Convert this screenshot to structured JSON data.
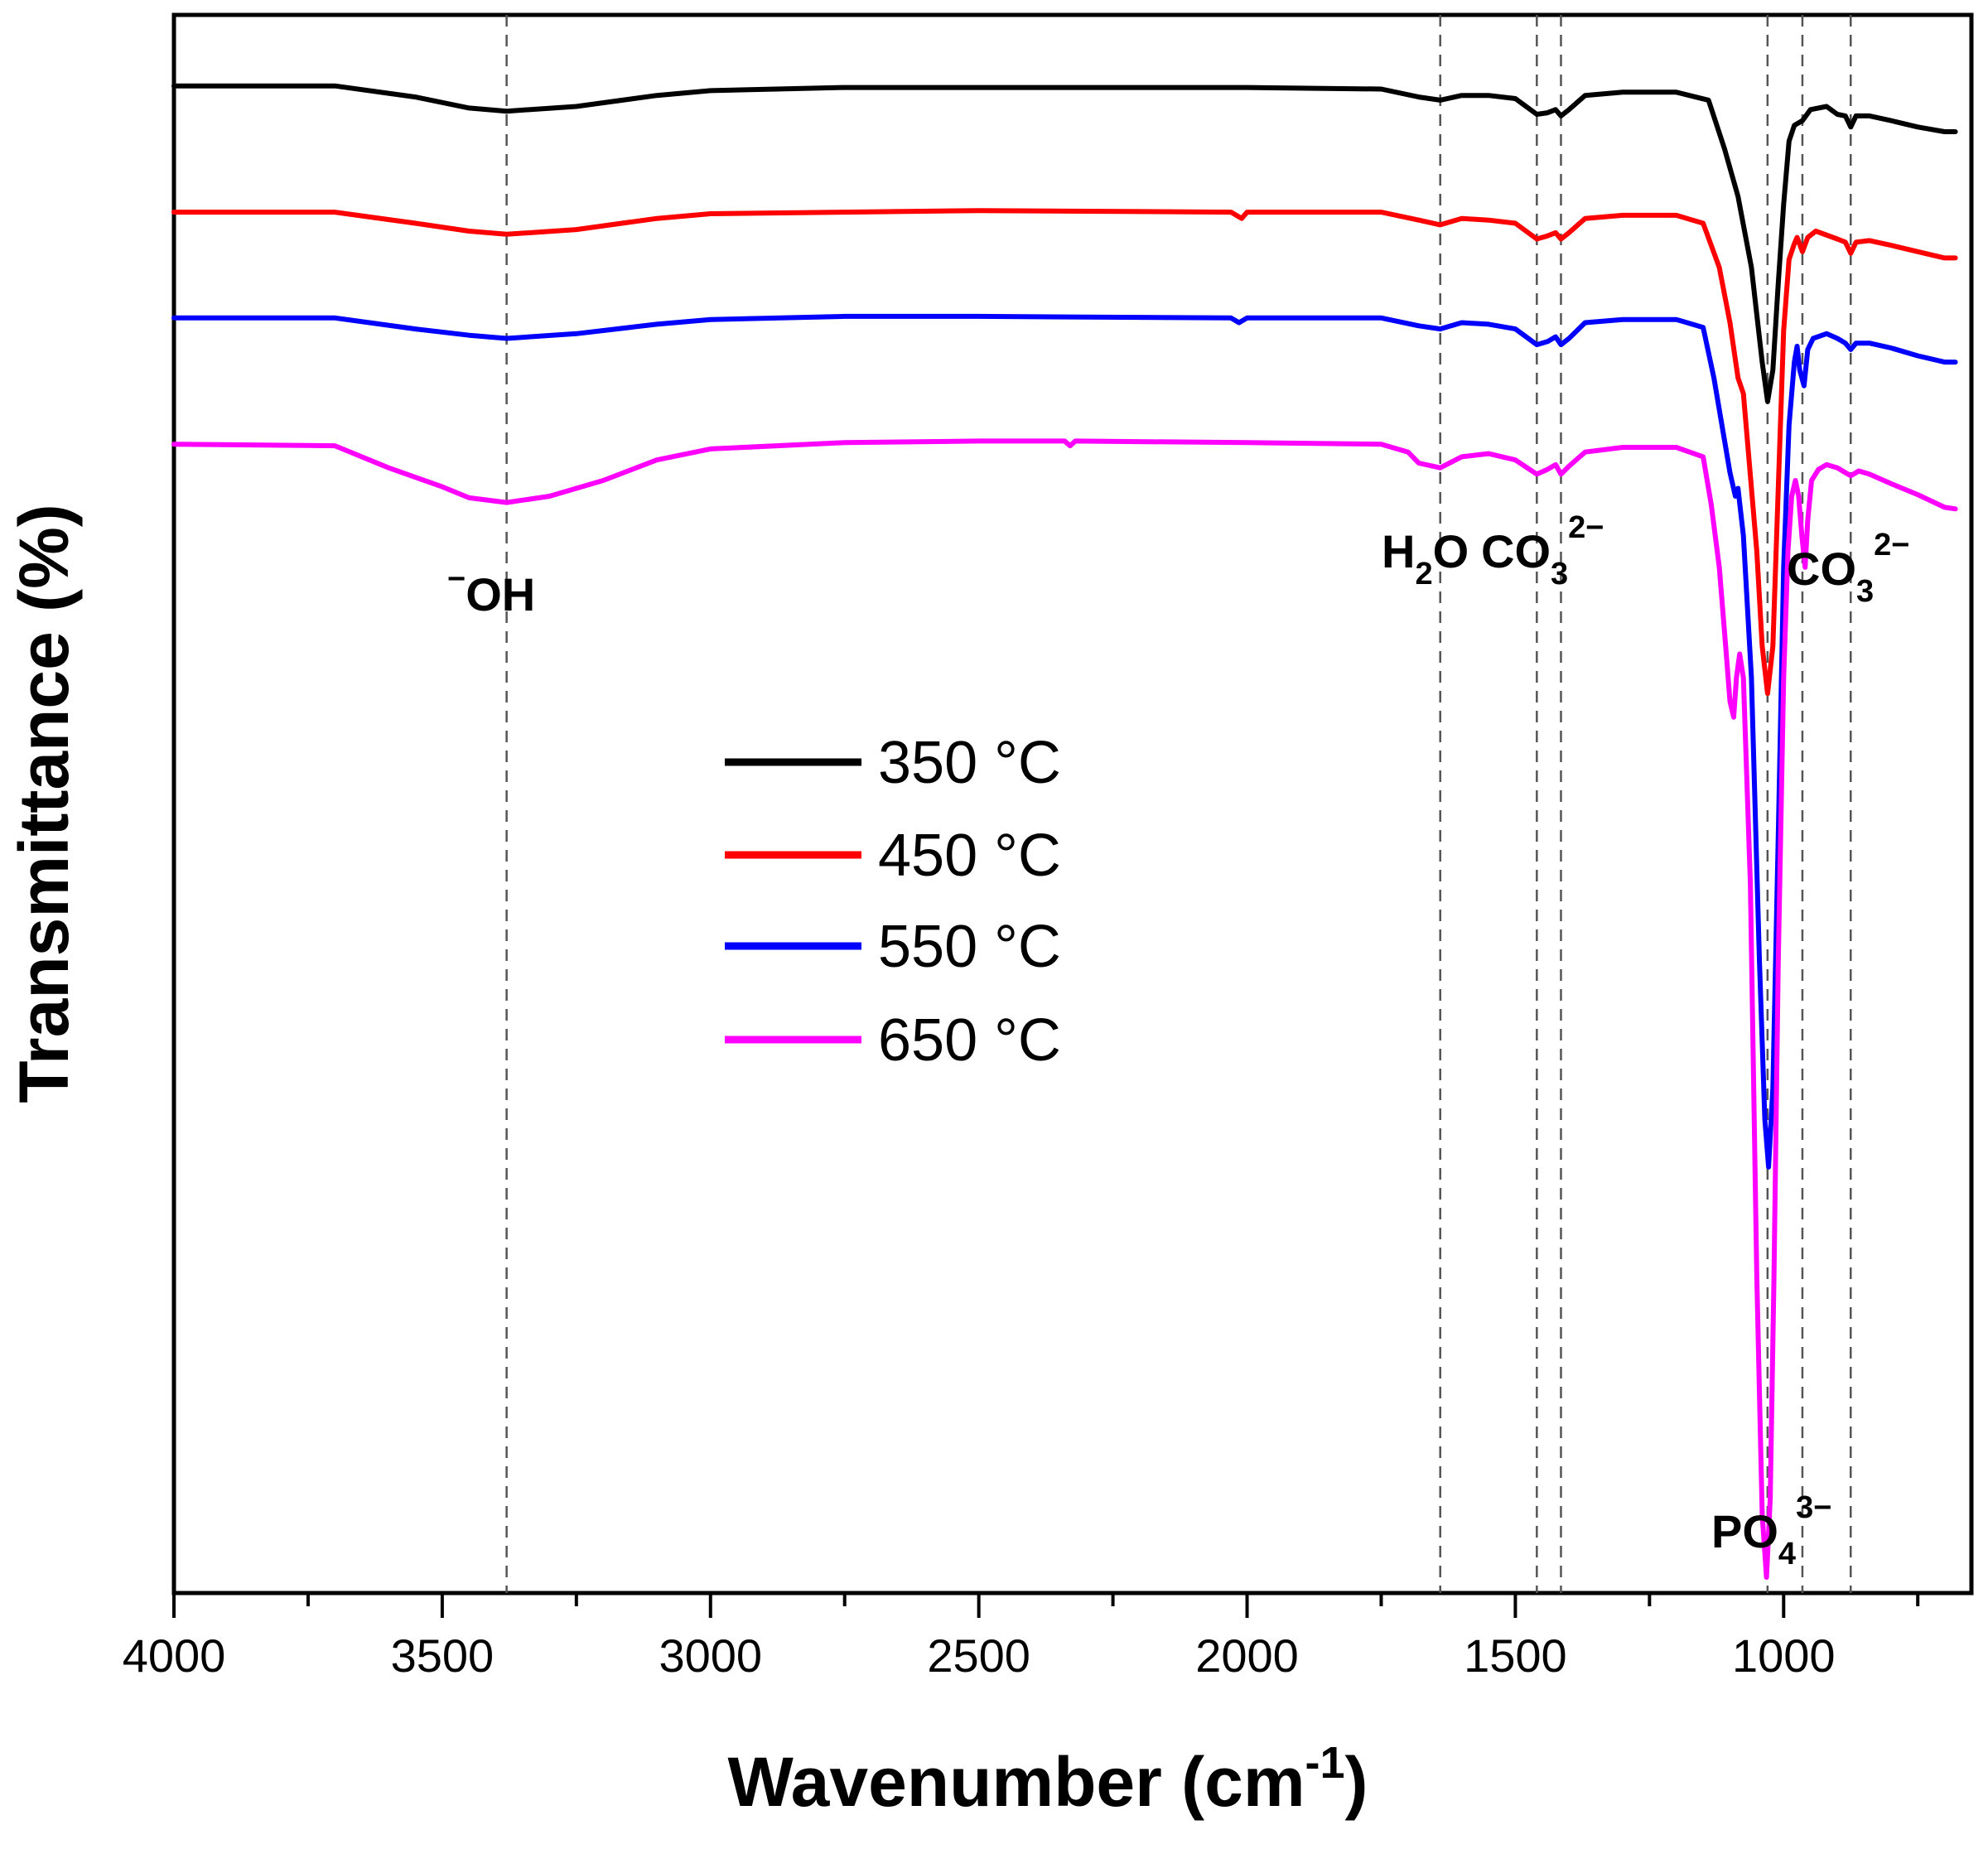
{
  "chart_data": {
    "type": "line",
    "title": "",
    "xlabel": "Wavenumber (cm",
    "xlabel_sup": "-1",
    "xlabel_close": ")",
    "ylabel": "Transmittance (%)",
    "xlim": [
      4000,
      650
    ],
    "ylim": [
      0,
      100
    ],
    "x_major_ticks": [
      4000,
      3500,
      3000,
      2500,
      2000,
      1500,
      1000
    ],
    "x_minor_ticks": [
      3750,
      3250,
      2750,
      2250,
      1750,
      1250,
      750
    ],
    "reference_lines": [
      3380,
      1640,
      1460,
      1415,
      1030,
      965,
      875
    ],
    "series": [
      {
        "name": "350 °C",
        "color": "#000000",
        "points": [
          [
            4000,
            95.5
          ],
          [
            3700,
            95.5
          ],
          [
            3550,
            94.8
          ],
          [
            3450,
            94.1
          ],
          [
            3380,
            93.9
          ],
          [
            3250,
            94.2
          ],
          [
            3100,
            94.9
          ],
          [
            3000,
            95.2
          ],
          [
            2750,
            95.4
          ],
          [
            2500,
            95.4
          ],
          [
            2000,
            95.4
          ],
          [
            1750,
            95.3
          ],
          [
            1680,
            94.8
          ],
          [
            1640,
            94.6
          ],
          [
            1600,
            94.9
          ],
          [
            1550,
            94.9
          ],
          [
            1500,
            94.7
          ],
          [
            1460,
            93.7
          ],
          [
            1440,
            93.8
          ],
          [
            1425,
            94.0
          ],
          [
            1415,
            93.6
          ],
          [
            1400,
            94.0
          ],
          [
            1370,
            94.9
          ],
          [
            1300,
            95.1
          ],
          [
            1200,
            95.1
          ],
          [
            1140,
            94.6
          ],
          [
            1110,
            91.5
          ],
          [
            1085,
            88.5
          ],
          [
            1060,
            84.0
          ],
          [
            1040,
            78.0
          ],
          [
            1030,
            75.5
          ],
          [
            1020,
            77.5
          ],
          [
            1010,
            83.0
          ],
          [
            1000,
            88.0
          ],
          [
            990,
            92.0
          ],
          [
            980,
            93.0
          ],
          [
            965,
            93.3
          ],
          [
            950,
            94.0
          ],
          [
            920,
            94.2
          ],
          [
            900,
            93.7
          ],
          [
            885,
            93.6
          ],
          [
            875,
            92.9
          ],
          [
            865,
            93.6
          ],
          [
            840,
            93.6
          ],
          [
            800,
            93.3
          ],
          [
            750,
            92.9
          ],
          [
            700,
            92.6
          ],
          [
            680,
            92.6
          ]
        ]
      },
      {
        "name": "450 °C",
        "color": "#ff0000",
        "points": [
          [
            4000,
            87.5
          ],
          [
            3700,
            87.5
          ],
          [
            3550,
            86.8
          ],
          [
            3450,
            86.3
          ],
          [
            3380,
            86.1
          ],
          [
            3250,
            86.4
          ],
          [
            3100,
            87.1
          ],
          [
            3000,
            87.4
          ],
          [
            2750,
            87.5
          ],
          [
            2500,
            87.6
          ],
          [
            2030,
            87.5
          ],
          [
            2010,
            87.1
          ],
          [
            2000,
            87.5
          ],
          [
            1750,
            87.5
          ],
          [
            1680,
            87.0
          ],
          [
            1640,
            86.7
          ],
          [
            1600,
            87.1
          ],
          [
            1550,
            87.0
          ],
          [
            1500,
            86.8
          ],
          [
            1460,
            85.8
          ],
          [
            1440,
            86.0
          ],
          [
            1425,
            86.2
          ],
          [
            1415,
            85.8
          ],
          [
            1400,
            86.2
          ],
          [
            1370,
            87.1
          ],
          [
            1300,
            87.3
          ],
          [
            1200,
            87.3
          ],
          [
            1150,
            86.8
          ],
          [
            1120,
            84.0
          ],
          [
            1100,
            80.5
          ],
          [
            1085,
            77.0
          ],
          [
            1075,
            76.0
          ],
          [
            1065,
            72.0
          ],
          [
            1050,
            66.0
          ],
          [
            1040,
            60.0
          ],
          [
            1030,
            57.0
          ],
          [
            1020,
            60.0
          ],
          [
            1010,
            70.0
          ],
          [
            1000,
            80.0
          ],
          [
            990,
            84.5
          ],
          [
            980,
            85.5
          ],
          [
            975,
            85.9
          ],
          [
            965,
            85.0
          ],
          [
            955,
            85.9
          ],
          [
            940,
            86.3
          ],
          [
            900,
            85.8
          ],
          [
            885,
            85.6
          ],
          [
            875,
            84.9
          ],
          [
            865,
            85.6
          ],
          [
            840,
            85.7
          ],
          [
            800,
            85.4
          ],
          [
            750,
            85.0
          ],
          [
            700,
            84.6
          ],
          [
            680,
            84.6
          ]
        ]
      },
      {
        "name": "550 °C",
        "color": "#0000ff",
        "points": [
          [
            4000,
            80.8
          ],
          [
            3700,
            80.8
          ],
          [
            3550,
            80.1
          ],
          [
            3450,
            79.7
          ],
          [
            3380,
            79.5
          ],
          [
            3250,
            79.8
          ],
          [
            3100,
            80.4
          ],
          [
            3000,
            80.7
          ],
          [
            2750,
            80.9
          ],
          [
            2500,
            80.9
          ],
          [
            2030,
            80.8
          ],
          [
            2015,
            80.5
          ],
          [
            2000,
            80.8
          ],
          [
            1750,
            80.8
          ],
          [
            1680,
            80.3
          ],
          [
            1640,
            80.1
          ],
          [
            1600,
            80.5
          ],
          [
            1550,
            80.4
          ],
          [
            1500,
            80.1
          ],
          [
            1460,
            79.1
          ],
          [
            1440,
            79.3
          ],
          [
            1425,
            79.6
          ],
          [
            1415,
            79.1
          ],
          [
            1400,
            79.5
          ],
          [
            1370,
            80.5
          ],
          [
            1300,
            80.7
          ],
          [
            1200,
            80.7
          ],
          [
            1150,
            80.2
          ],
          [
            1130,
            77.0
          ],
          [
            1115,
            74.0
          ],
          [
            1100,
            71.0
          ],
          [
            1090,
            69.5
          ],
          [
            1085,
            70.0
          ],
          [
            1075,
            67.0
          ],
          [
            1060,
            58.0
          ],
          [
            1045,
            40.0
          ],
          [
            1035,
            30.0
          ],
          [
            1028,
            27.0
          ],
          [
            1020,
            32.0
          ],
          [
            1010,
            48.0
          ],
          [
            1000,
            65.0
          ],
          [
            990,
            74.0
          ],
          [
            980,
            78.0
          ],
          [
            975,
            79.0
          ],
          [
            970,
            77.5
          ],
          [
            962,
            76.5
          ],
          [
            955,
            78.8
          ],
          [
            945,
            79.5
          ],
          [
            920,
            79.8
          ],
          [
            900,
            79.5
          ],
          [
            885,
            79.2
          ],
          [
            875,
            78.8
          ],
          [
            865,
            79.2
          ],
          [
            840,
            79.2
          ],
          [
            800,
            78.9
          ],
          [
            750,
            78.4
          ],
          [
            700,
            78.0
          ],
          [
            680,
            78.0
          ]
        ]
      },
      {
        "name": "650 °C",
        "color": "#ff00ff",
        "points": [
          [
            4000,
            72.8
          ],
          [
            3700,
            72.7
          ],
          [
            3600,
            71.3
          ],
          [
            3500,
            70.1
          ],
          [
            3450,
            69.4
          ],
          [
            3380,
            69.1
          ],
          [
            3300,
            69.5
          ],
          [
            3200,
            70.5
          ],
          [
            3100,
            71.8
          ],
          [
            3000,
            72.5
          ],
          [
            2750,
            72.9
          ],
          [
            2500,
            73.0
          ],
          [
            2340,
            73.0
          ],
          [
            2330,
            72.7
          ],
          [
            2320,
            73.0
          ],
          [
            2000,
            72.9
          ],
          [
            1750,
            72.8
          ],
          [
            1700,
            72.3
          ],
          [
            1680,
            71.6
          ],
          [
            1640,
            71.3
          ],
          [
            1600,
            72.0
          ],
          [
            1550,
            72.2
          ],
          [
            1500,
            71.8
          ],
          [
            1460,
            70.9
          ],
          [
            1440,
            71.2
          ],
          [
            1425,
            71.5
          ],
          [
            1415,
            70.9
          ],
          [
            1400,
            71.4
          ],
          [
            1370,
            72.3
          ],
          [
            1300,
            72.6
          ],
          [
            1200,
            72.6
          ],
          [
            1150,
            72.0
          ],
          [
            1135,
            69.0
          ],
          [
            1120,
            65.0
          ],
          [
            1108,
            60.0
          ],
          [
            1100,
            56.5
          ],
          [
            1093,
            55.5
          ],
          [
            1088,
            58.0
          ],
          [
            1082,
            59.5
          ],
          [
            1075,
            58.0
          ],
          [
            1062,
            45.0
          ],
          [
            1050,
            20.0
          ],
          [
            1040,
            5.0
          ],
          [
            1032,
            1.0
          ],
          [
            1025,
            6.0
          ],
          [
            1018,
            20.0
          ],
          [
            1010,
            40.0
          ],
          [
            1000,
            58.0
          ],
          [
            992,
            66.0
          ],
          [
            985,
            69.5
          ],
          [
            978,
            70.5
          ],
          [
            972,
            69.5
          ],
          [
            966,
            67.0
          ],
          [
            960,
            65.0
          ],
          [
            955,
            68.0
          ],
          [
            948,
            70.5
          ],
          [
            935,
            71.2
          ],
          [
            920,
            71.5
          ],
          [
            900,
            71.3
          ],
          [
            885,
            71.0
          ],
          [
            875,
            70.8
          ],
          [
            860,
            71.1
          ],
          [
            840,
            70.9
          ],
          [
            800,
            70.3
          ],
          [
            750,
            69.6
          ],
          [
            700,
            68.8
          ],
          [
            680,
            68.7
          ]
        ]
      }
    ],
    "annotations": [
      {
        "pre": "−",
        "main": "OH",
        "sub": "",
        "sup": ""
      },
      {
        "pre": "",
        "main": "H",
        "sub": "2",
        "after": "O",
        "sup": ""
      },
      {
        "pre": "",
        "main": "CO",
        "sub": "3",
        "sup": "2−"
      },
      {
        "pre": "",
        "main": "CO",
        "sub": "3",
        "sup": "2−"
      },
      {
        "pre": "",
        "main": "PO",
        "sub": "4",
        "sup": "3−"
      }
    ],
    "legend": {
      "placement": "center-left",
      "items": [
        "350 °C",
        "450 °C",
        "550 °C",
        "650 °C"
      ]
    }
  }
}
